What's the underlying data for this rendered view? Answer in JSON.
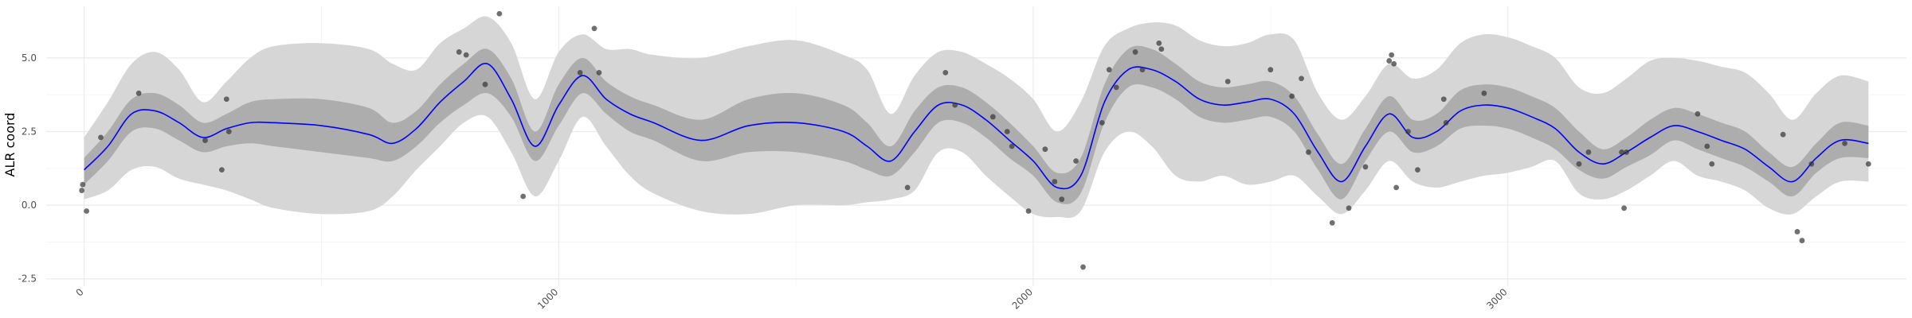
{
  "chart_data": {
    "type": "line",
    "title": "",
    "xlabel": "",
    "ylabel": "ALR coord",
    "xlim": [
      -80,
      3840
    ],
    "ylim": [
      -2.75,
      6.75
    ],
    "grid": true,
    "legend": "none",
    "x_ticks": [
      0,
      1000,
      2000,
      3000
    ],
    "x_tick_labels": [
      "0",
      "1000",
      "2000",
      "3000"
    ],
    "x_tick_rotation": -45,
    "y_ticks": [
      -2.5,
      0.0,
      2.5,
      5.0
    ],
    "y_tick_labels": [
      "-2.5",
      "0.0",
      "2.5",
      "5.0"
    ],
    "colors": {
      "mean_line": "#0000ff",
      "inner_band": "#adadad",
      "outer_band": "#d6d6d6",
      "points": "#333333",
      "grid_major": "#ebebeb",
      "grid_minor": "#f5f5f5"
    },
    "series": [
      {
        "type": "line",
        "x": [
          0,
          50,
          100,
          150,
          200,
          250,
          300,
          350,
          400,
          500,
          600,
          650,
          700,
          750,
          800,
          850,
          900,
          950,
          1000,
          1050,
          1100,
          1150,
          1200,
          1300,
          1400,
          1500,
          1600,
          1650,
          1700,
          1750,
          1800,
          1850,
          1900,
          1950,
          2000,
          2050,
          2100,
          2150,
          2200,
          2250,
          2300,
          2350,
          2400,
          2450,
          2500,
          2550,
          2600,
          2650,
          2700,
          2750,
          2800,
          2850,
          2900,
          2950,
          3000,
          3050,
          3100,
          3150,
          3200,
          3250,
          3300,
          3350,
          3400,
          3450,
          3500,
          3550,
          3600,
          3650,
          3700,
          3760
        ],
        "y": [
          1.2,
          2.0,
          3.1,
          3.2,
          2.8,
          2.3,
          2.6,
          2.8,
          2.8,
          2.7,
          2.4,
          2.1,
          2.6,
          3.5,
          4.2,
          4.8,
          3.6,
          2.0,
          3.4,
          4.4,
          3.6,
          3.1,
          2.8,
          2.2,
          2.7,
          2.8,
          2.5,
          2.0,
          1.5,
          2.5,
          3.4,
          3.4,
          2.9,
          2.2,
          1.5,
          0.6,
          1.0,
          3.5,
          4.6,
          4.6,
          4.2,
          3.6,
          3.4,
          3.5,
          3.6,
          3.1,
          1.8,
          0.8,
          2.0,
          3.1,
          2.3,
          2.5,
          3.2,
          3.4,
          3.3,
          3.0,
          2.6,
          1.8,
          1.4,
          1.8,
          2.3,
          2.7,
          2.5,
          2.2,
          1.9,
          1.3,
          0.8,
          1.6,
          2.2,
          2.1
        ]
      },
      {
        "type": "band",
        "x": [
          0,
          50,
          100,
          150,
          200,
          250,
          300,
          350,
          400,
          500,
          600,
          650,
          700,
          750,
          800,
          850,
          900,
          950,
          1000,
          1050,
          1100,
          1150,
          1200,
          1300,
          1400,
          1500,
          1600,
          1650,
          1700,
          1750,
          1800,
          1850,
          1900,
          1950,
          2000,
          2050,
          2100,
          2150,
          2200,
          2250,
          2300,
          2350,
          2400,
          2450,
          2500,
          2550,
          2600,
          2650,
          2700,
          2750,
          2800,
          2850,
          2900,
          2950,
          3000,
          3050,
          3100,
          3150,
          3200,
          3250,
          3300,
          3350,
          3400,
          3450,
          3500,
          3550,
          3600,
          3650,
          3700,
          3760
        ],
        "lower": [
          0.7,
          1.5,
          2.5,
          2.6,
          2.2,
          1.8,
          2.0,
          2.1,
          2.0,
          1.8,
          1.6,
          1.5,
          2.0,
          2.8,
          3.4,
          3.8,
          3.0,
          1.5,
          2.7,
          3.8,
          3.1,
          2.5,
          2.2,
          1.5,
          1.8,
          1.8,
          1.5,
          1.2,
          1.0,
          1.8,
          2.8,
          2.8,
          2.3,
          1.6,
          1.0,
          0.1,
          0.4,
          2.8,
          4.0,
          4.0,
          3.6,
          3.0,
          2.8,
          2.9,
          3.0,
          2.5,
          1.2,
          0.2,
          1.5,
          2.5,
          1.8,
          2.0,
          2.6,
          2.7,
          2.6,
          2.3,
          1.9,
          1.2,
          0.9,
          1.3,
          1.7,
          2.2,
          1.9,
          1.6,
          1.3,
          0.8,
          0.3,
          1.1,
          1.6,
          1.6
        ],
        "upper": [
          1.6,
          2.5,
          3.6,
          3.8,
          3.4,
          2.8,
          3.1,
          3.5,
          3.6,
          3.6,
          3.3,
          2.8,
          3.2,
          4.1,
          4.8,
          5.3,
          4.3,
          2.5,
          4.1,
          5.0,
          4.2,
          3.7,
          3.4,
          2.9,
          3.6,
          3.8,
          3.4,
          2.8,
          2.0,
          3.2,
          4.0,
          4.0,
          3.5,
          2.8,
          2.0,
          1.1,
          1.6,
          4.1,
          5.3,
          5.3,
          4.8,
          4.2,
          4.0,
          4.1,
          4.2,
          3.7,
          2.4,
          1.4,
          2.6,
          3.7,
          2.9,
          3.1,
          3.9,
          4.1,
          4.0,
          3.7,
          3.3,
          2.5,
          1.9,
          2.3,
          2.9,
          3.3,
          3.1,
          2.8,
          2.5,
          1.8,
          1.3,
          2.1,
          2.8,
          2.7
        ]
      },
      {
        "type": "band",
        "x": [
          0,
          50,
          100,
          150,
          200,
          250,
          300,
          350,
          400,
          500,
          600,
          650,
          700,
          750,
          800,
          850,
          900,
          950,
          1000,
          1050,
          1100,
          1150,
          1200,
          1300,
          1400,
          1500,
          1600,
          1650,
          1700,
          1750,
          1800,
          1850,
          1900,
          1950,
          2000,
          2050,
          2100,
          2150,
          2200,
          2250,
          2300,
          2350,
          2400,
          2450,
          2500,
          2550,
          2600,
          2650,
          2700,
          2750,
          2800,
          2850,
          2900,
          2950,
          3000,
          3050,
          3100,
          3150,
          3200,
          3250,
          3300,
          3350,
          3400,
          3450,
          3500,
          3550,
          3600,
          3650,
          3700,
          3760
        ],
        "lower": [
          0.2,
          0.5,
          1.2,
          1.3,
          0.9,
          0.7,
          0.5,
          0.2,
          -0.1,
          -0.3,
          -0.2,
          0.3,
          1.2,
          2.0,
          2.8,
          3.0,
          1.8,
          0.3,
          1.5,
          3.0,
          2.0,
          1.0,
          0.4,
          -0.2,
          -0.3,
          0.0,
          0.0,
          0.1,
          0.2,
          0.5,
          1.8,
          1.8,
          1.0,
          0.3,
          -0.3,
          -0.4,
          -0.2,
          1.8,
          2.5,
          2.0,
          1.0,
          0.8,
          1.0,
          0.7,
          0.8,
          1.0,
          0.3,
          -0.3,
          0.5,
          1.5,
          0.8,
          0.6,
          0.8,
          1.0,
          1.1,
          1.3,
          1.5,
          0.4,
          0.2,
          0.5,
          1.0,
          1.5,
          1.0,
          0.8,
          0.5,
          -0.1,
          -0.3,
          0.3,
          0.8,
          0.8
        ],
        "upper": [
          2.3,
          3.5,
          4.8,
          5.2,
          4.6,
          3.5,
          4.2,
          5.0,
          5.4,
          5.5,
          5.3,
          4.8,
          4.6,
          5.5,
          6.0,
          6.4,
          5.5,
          3.6,
          5.2,
          5.8,
          5.3,
          5.3,
          5.1,
          5.0,
          5.4,
          5.6,
          5.1,
          4.6,
          3.1,
          4.4,
          5.2,
          5.2,
          4.8,
          4.3,
          3.6,
          2.5,
          3.5,
          5.4,
          6.0,
          6.2,
          6.1,
          5.6,
          5.4,
          5.5,
          5.8,
          5.6,
          3.8,
          2.9,
          3.7,
          4.8,
          4.3,
          4.6,
          5.5,
          5.8,
          5.7,
          5.4,
          5.0,
          4.0,
          3.8,
          4.3,
          4.9,
          5.0,
          4.9,
          4.7,
          4.5,
          3.8,
          2.9,
          3.8,
          4.4,
          4.2
        ]
      },
      {
        "type": "scatter",
        "x": [
          -5,
          -3,
          5,
          35,
          115,
          255,
          290,
          300,
          305,
          790,
          805,
          845,
          875,
          925,
          1045,
          1075,
          1085,
          1735,
          1815,
          1835,
          1915,
          1945,
          1955,
          1990,
          2025,
          2045,
          2060,
          2090,
          2105,
          2145,
          2160,
          2175,
          2215,
          2230,
          2265,
          2270,
          2410,
          2500,
          2545,
          2565,
          2580,
          2630,
          2665,
          2700,
          2750,
          2755,
          2760,
          2765,
          2790,
          2810,
          2865,
          2870,
          2950,
          3150,
          3170,
          3240,
          3245,
          3250,
          3400,
          3420,
          3430,
          3580,
          3610,
          3620,
          3640,
          3710,
          3760
        ],
        "y": [
          0.5,
          0.7,
          -0.2,
          2.3,
          3.8,
          2.2,
          1.2,
          3.6,
          2.5,
          5.2,
          5.1,
          4.1,
          6.5,
          0.3,
          4.5,
          6.0,
          4.5,
          0.6,
          4.5,
          3.4,
          3.0,
          2.5,
          2.0,
          -0.2,
          1.9,
          0.8,
          0.2,
          1.5,
          -2.1,
          2.8,
          4.6,
          4.0,
          5.2,
          4.6,
          5.5,
          5.3,
          4.2,
          4.6,
          3.7,
          4.3,
          1.8,
          -0.6,
          -0.1,
          1.3,
          4.9,
          5.1,
          4.8,
          0.6,
          2.5,
          1.2,
          3.6,
          2.8,
          3.8,
          1.4,
          1.8,
          1.8,
          -0.1,
          1.8,
          3.1,
          2.0,
          1.4,
          2.4,
          -0.9,
          -1.2,
          1.4,
          2.1,
          1.4
        ]
      }
    ]
  }
}
